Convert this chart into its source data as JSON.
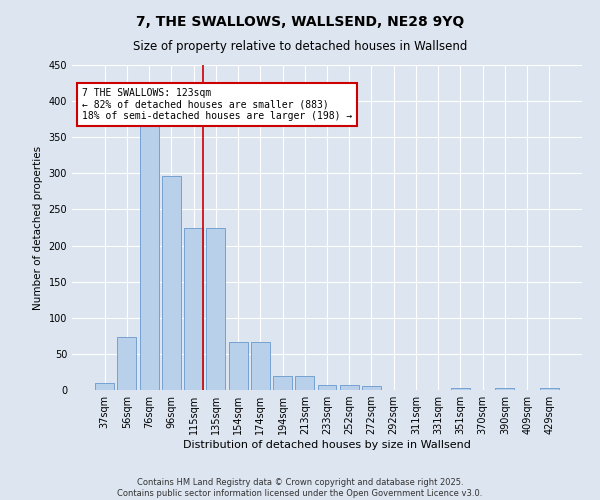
{
  "title": "7, THE SWALLOWS, WALLSEND, NE28 9YQ",
  "subtitle": "Size of property relative to detached houses in Wallsend",
  "xlabel": "Distribution of detached houses by size in Wallsend",
  "ylabel": "Number of detached properties",
  "footer_line1": "Contains HM Land Registry data © Crown copyright and database right 2025.",
  "footer_line2": "Contains public sector information licensed under the Open Government Licence v3.0.",
  "categories": [
    "37sqm",
    "56sqm",
    "76sqm",
    "96sqm",
    "115sqm",
    "135sqm",
    "154sqm",
    "174sqm",
    "194sqm",
    "213sqm",
    "233sqm",
    "252sqm",
    "272sqm",
    "292sqm",
    "311sqm",
    "331sqm",
    "351sqm",
    "370sqm",
    "390sqm",
    "409sqm",
    "429sqm"
  ],
  "values": [
    10,
    73,
    375,
    297,
    224,
    224,
    67,
    67,
    20,
    20,
    7,
    7,
    5,
    0,
    0,
    0,
    3,
    0,
    3,
    0,
    3
  ],
  "bar_color": "#b8d0ea",
  "bar_edge_color": "#6699cc",
  "figure_bg": "#dde5f0",
  "axes_bg": "#dde5f0",
  "grid_color": "#ffffff",
  "ylim": [
    0,
    450
  ],
  "yticks": [
    0,
    50,
    100,
    150,
    200,
    250,
    300,
    350,
    400,
    450
  ],
  "property_label": "7 THE SWALLOWS: 123sqm",
  "pct_smaller": "82% of detached houses are smaller (883)",
  "pct_larger": "18% of semi-detached houses are larger (198)",
  "vline_color": "#cc0000",
  "annotation_box_color": "#cc0000",
  "vline_x_index": 4
}
